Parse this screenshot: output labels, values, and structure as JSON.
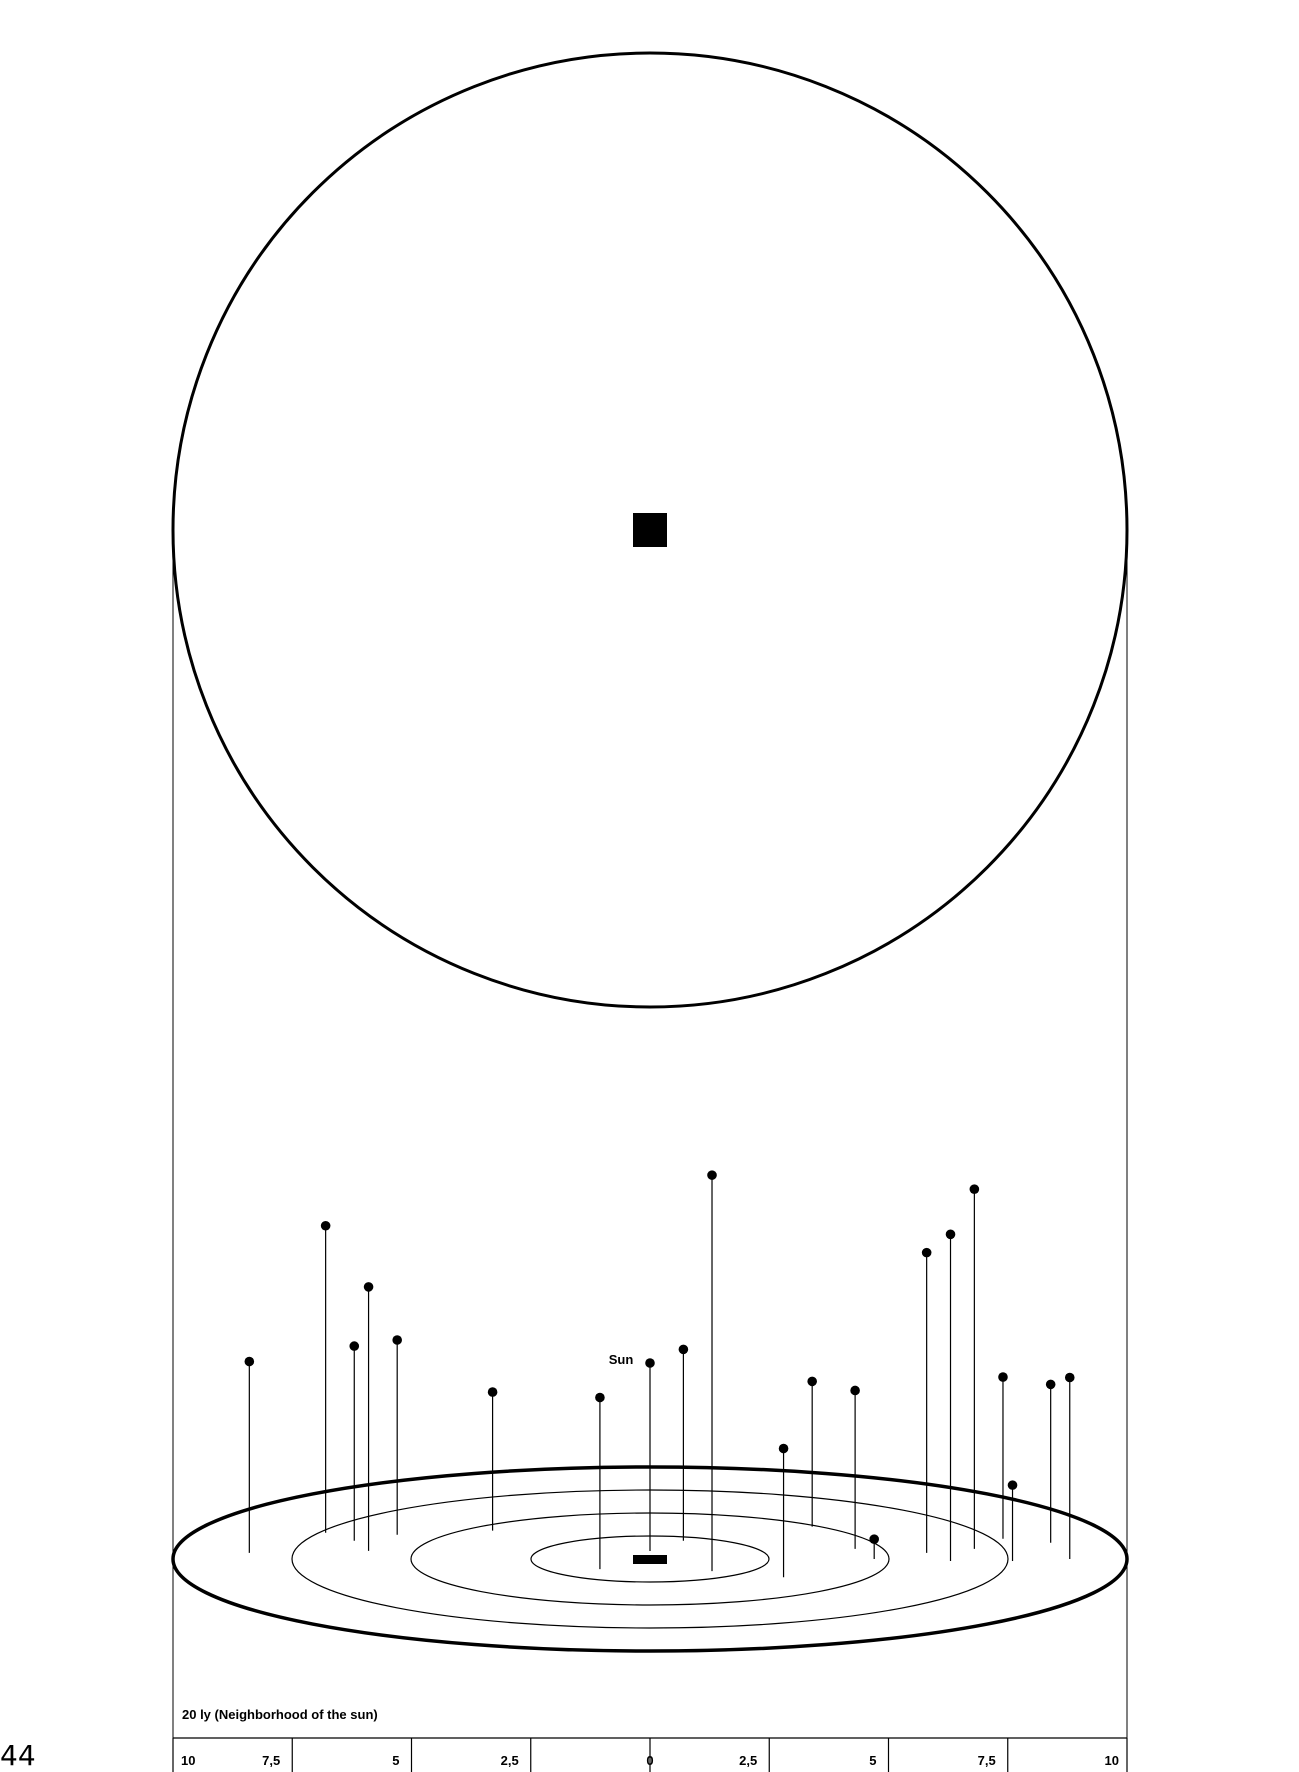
{
  "page_number": "44",
  "title": "20 ly (Neighborhood of the sun)",
  "sun_label": "Sun",
  "scale_labels": [
    "10",
    "7,5",
    "5",
    "2,5",
    "0",
    "2,5",
    "5",
    "7,5",
    "10"
  ],
  "colors": {
    "ink": "#000000",
    "paper": "#ffffff"
  },
  "stars": [
    {
      "x": -8.4,
      "z": -0.3,
      "h": 5.8
    },
    {
      "x": -6.8,
      "z": -1.3,
      "h": 9.3
    },
    {
      "x": -6.2,
      "z": -0.9,
      "h": 5.9
    },
    {
      "x": -5.9,
      "z": -0.4,
      "h": 8.0
    },
    {
      "x": -5.3,
      "z": -1.2,
      "h": 5.9
    },
    {
      "x": -3.3,
      "z": -1.4,
      "h": 4.2
    },
    {
      "x": -1.05,
      "z": 0.5,
      "h": 5.2
    },
    {
      "x": 0.7,
      "z": -0.9,
      "h": 5.8
    },
    {
      "x": 1.3,
      "z": 0.6,
      "h": 12.0
    },
    {
      "x": 2.8,
      "z": 0.9,
      "h": 3.9
    },
    {
      "x": 3.4,
      "z": -1.6,
      "h": 4.4
    },
    {
      "x": 4.3,
      "z": -0.5,
      "h": 4.8
    },
    {
      "x": 4.7,
      "z": 0.0,
      "h": 0.6
    },
    {
      "x": 5.8,
      "z": -0.3,
      "h": 9.1
    },
    {
      "x": 6.3,
      "z": 0.1,
      "h": 9.9
    },
    {
      "x": 6.8,
      "z": -0.5,
      "h": 10.9
    },
    {
      "x": 7.4,
      "z": -1.0,
      "h": 4.9
    },
    {
      "x": 7.6,
      "z": 0.1,
      "h": 2.3
    },
    {
      "x": 8.4,
      "z": -0.8,
      "h": 4.8
    },
    {
      "x": 8.8,
      "z": 0.0,
      "h": 5.5
    }
  ]
}
